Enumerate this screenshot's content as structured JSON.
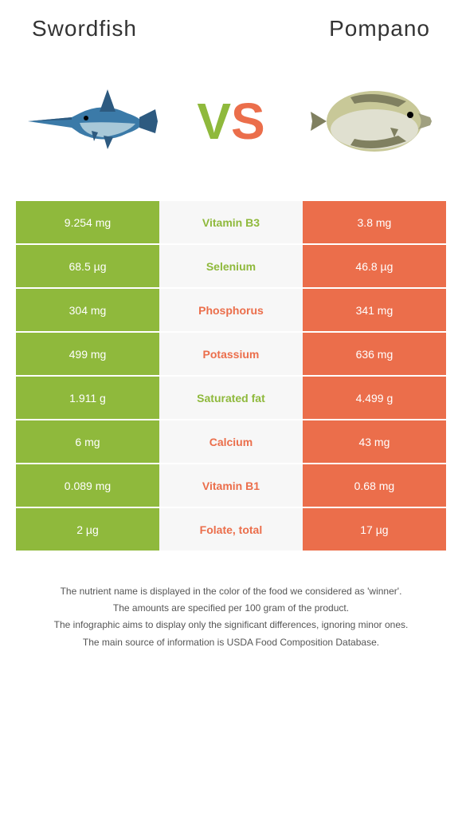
{
  "titles": {
    "left": "Swordfish",
    "right": "Pompano"
  },
  "vs": {
    "v": "V",
    "s": "S"
  },
  "colors": {
    "left": "#8fb93c",
    "right": "#eb6e4b",
    "mid_bg": "#f7f7f7",
    "winner_left": "#8fb93c",
    "winner_right": "#eb6e4b"
  },
  "rows": [
    {
      "left": "9.254 mg",
      "mid": "Vitamin B3",
      "right": "3.8 mg",
      "winner": "left"
    },
    {
      "left": "68.5 µg",
      "mid": "Selenium",
      "right": "46.8 µg",
      "winner": "left"
    },
    {
      "left": "304 mg",
      "mid": "Phosphorus",
      "right": "341 mg",
      "winner": "right"
    },
    {
      "left": "499 mg",
      "mid": "Potassium",
      "right": "636 mg",
      "winner": "right"
    },
    {
      "left": "1.911 g",
      "mid": "Saturated fat",
      "right": "4.499 g",
      "winner": "left"
    },
    {
      "left": "6 mg",
      "mid": "Calcium",
      "right": "43 mg",
      "winner": "right"
    },
    {
      "left": "0.089 mg",
      "mid": "Vitamin B1",
      "right": "0.68 mg",
      "winner": "right"
    },
    {
      "left": "2 µg",
      "mid": "Folate, total",
      "right": "17 µg",
      "winner": "right"
    }
  ],
  "footer": [
    "The nutrient name is displayed in the color of the food we considered as 'winner'.",
    "The amounts are specified per 100 gram of the product.",
    "The infographic aims to display only the significant differences, ignoring minor ones.",
    "The main source of information is USDA Food Composition Database."
  ],
  "fish": {
    "swordfish_colors": {
      "body": "#3b7aa8",
      "belly": "#a8c8d8",
      "fin": "#2d5a80"
    },
    "pompano_colors": {
      "body": "#c8c898",
      "belly": "#e0e0d0",
      "fin": "#808060"
    }
  }
}
